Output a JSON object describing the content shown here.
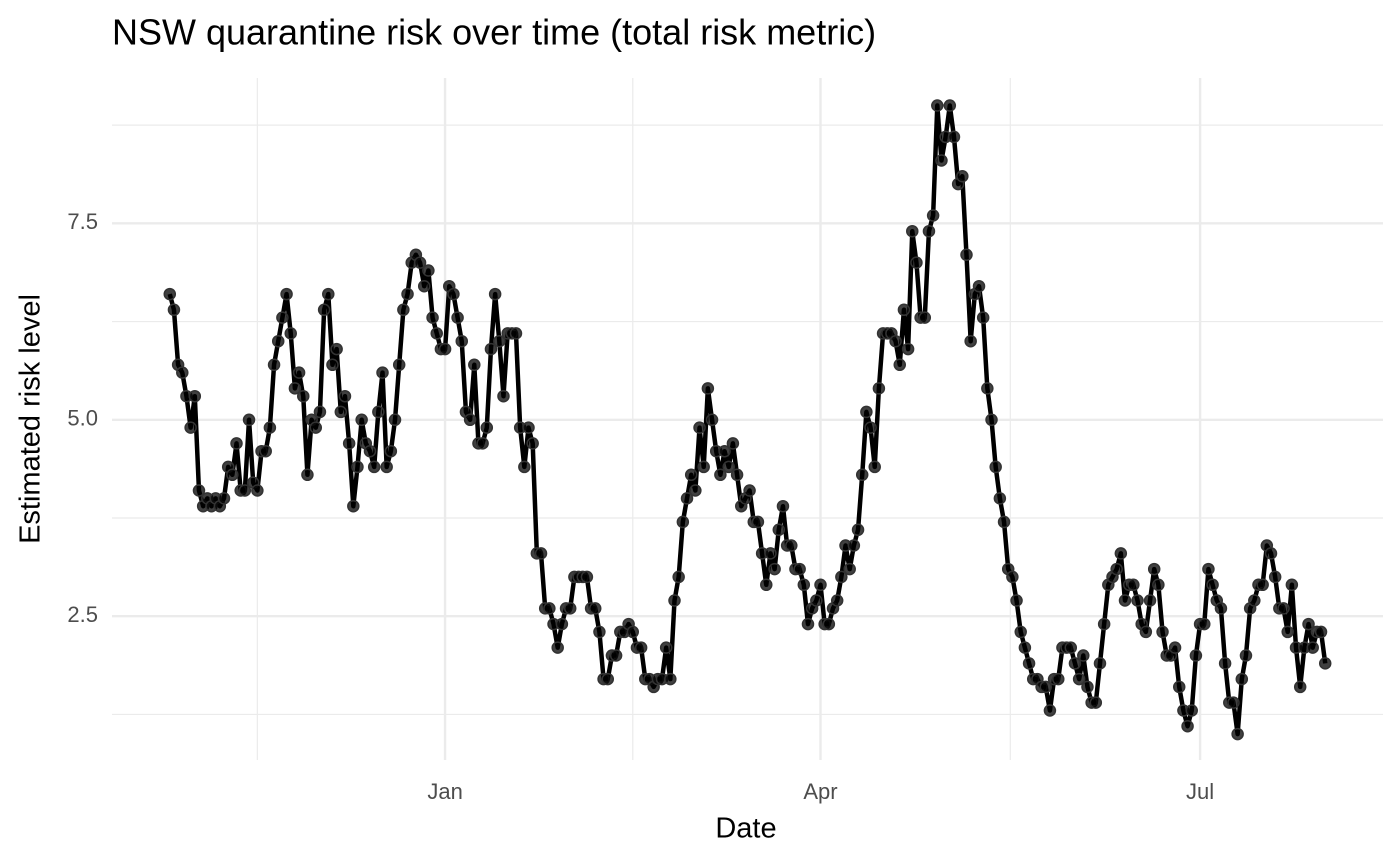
{
  "chart_data": {
    "type": "line",
    "title": "NSW quarantine risk over time (total risk metric)",
    "x_label": "Date",
    "y_label": "Estimated risk level",
    "color": "#000000",
    "grid": true,
    "ylim": [
      0.67,
      9.35
    ],
    "yticks": [
      2.5,
      {
        "value": 5,
        "label": "5.0"
      },
      7.5
    ],
    "categories": [
      null,
      null,
      null,
      null,
      null,
      null,
      null,
      null,
      null,
      null,
      null,
      null,
      null,
      null,
      null,
      null,
      null,
      null,
      null,
      null,
      null,
      null,
      null,
      null,
      null,
      null,
      null,
      null,
      null,
      null,
      null,
      null,
      null,
      null,
      null,
      null,
      null,
      null,
      null,
      null,
      null,
      null,
      null,
      null,
      null,
      null,
      null,
      null,
      null,
      null,
      null,
      null,
      null,
      null,
      null,
      null,
      null,
      null,
      null,
      null,
      null,
      null,
      null,
      null,
      null,
      null,
      "Jan",
      null,
      null,
      null,
      null,
      null,
      null,
      null,
      null,
      null,
      null,
      null,
      null,
      null,
      null,
      null,
      null,
      null,
      null,
      null,
      null,
      null,
      null,
      null,
      null,
      null,
      null,
      null,
      null,
      null,
      null,
      null,
      null,
      null,
      null,
      null,
      null,
      null,
      null,
      null,
      null,
      null,
      null,
      null,
      null,
      null,
      null,
      null,
      null,
      null,
      null,
      null,
      null,
      null,
      null,
      null,
      null,
      null,
      null,
      null,
      null,
      null,
      null,
      null,
      null,
      null,
      null,
      null,
      null,
      null,
      null,
      null,
      null,
      null,
      null,
      null,
      null,
      null,
      null,
      null,
      null,
      null,
      null,
      null,
      null,
      null,
      null,
      null,
      null,
      null,
      "Apr",
      null,
      null,
      null,
      null,
      null,
      null,
      null,
      null,
      null,
      null,
      null,
      null,
      null,
      null,
      null,
      null,
      null,
      null,
      null,
      null,
      null,
      null,
      null,
      null,
      null,
      null,
      null,
      null,
      null,
      null,
      null,
      null,
      null,
      null,
      null,
      null,
      null,
      null,
      null,
      null,
      null,
      null,
      null,
      null,
      null,
      null,
      null,
      null,
      null,
      null,
      null,
      null,
      null,
      null,
      null,
      null,
      null,
      null,
      null,
      null,
      null,
      null,
      null,
      null,
      null,
      null,
      null,
      null,
      null,
      null,
      null,
      null,
      null,
      null,
      null,
      null,
      null,
      null,
      null,
      null,
      null,
      null,
      null,
      null,
      null,
      null,
      null,
      null,
      null,
      null,
      "Jul",
      null,
      null,
      null,
      null,
      null,
      null,
      null,
      null,
      null,
      null,
      null,
      null,
      null,
      null,
      null,
      null,
      null,
      null,
      null,
      null,
      null,
      null,
      null,
      null,
      null,
      null,
      null,
      null,
      null,
      null
    ],
    "values": [
      6.6,
      6.4,
      5.7,
      5.6,
      5.3,
      4.9,
      5.3,
      4.1,
      3.9,
      4.0,
      3.9,
      4.0,
      3.9,
      4.0,
      4.4,
      4.3,
      4.7,
      4.1,
      4.1,
      5.0,
      4.2,
      4.1,
      4.6,
      4.6,
      4.9,
      5.7,
      6.0,
      6.3,
      6.6,
      6.1,
      5.4,
      5.6,
      5.3,
      4.3,
      5.0,
      4.9,
      5.1,
      6.4,
      6.6,
      5.7,
      5.9,
      5.1,
      5.3,
      4.7,
      3.9,
      4.4,
      5.0,
      4.7,
      4.6,
      4.4,
      5.1,
      5.6,
      4.4,
      4.6,
      5.0,
      5.7,
      6.4,
      6.6,
      7.0,
      7.1,
      7.0,
      6.7,
      6.9,
      6.3,
      6.1,
      5.9,
      5.9,
      6.7,
      6.6,
      6.3,
      6.0,
      5.1,
      5.0,
      5.7,
      4.7,
      4.7,
      4.9,
      5.9,
      6.6,
      6.0,
      5.3,
      6.1,
      6.1,
      6.1,
      4.9,
      4.4,
      4.9,
      4.7,
      3.3,
      3.3,
      2.6,
      2.6,
      2.4,
      2.1,
      2.4,
      2.6,
      2.6,
      3.0,
      3.0,
      3.0,
      3.0,
      2.6,
      2.6,
      2.3,
      1.7,
      1.7,
      2.0,
      2.0,
      2.3,
      2.3,
      2.4,
      2.3,
      2.1,
      2.1,
      1.7,
      1.7,
      1.6,
      1.7,
      1.7,
      2.1,
      1.7,
      2.7,
      3.0,
      3.7,
      4.0,
      4.3,
      4.1,
      4.9,
      4.4,
      5.4,
      5.0,
      4.6,
      4.3,
      4.6,
      4.4,
      4.7,
      4.3,
      3.9,
      4.0,
      4.1,
      3.7,
      3.7,
      3.3,
      2.9,
      3.3,
      3.1,
      3.6,
      3.9,
      3.4,
      3.4,
      3.1,
      3.1,
      2.9,
      2.4,
      2.6,
      2.7,
      2.9,
      2.4,
      2.4,
      2.6,
      2.7,
      3.0,
      3.4,
      3.1,
      3.4,
      3.6,
      4.3,
      5.1,
      4.9,
      4.4,
      5.4,
      6.1,
      6.1,
      6.1,
      6.0,
      5.7,
      6.4,
      5.9,
      7.4,
      7.0,
      6.3,
      6.3,
      7.4,
      7.6,
      9.0,
      8.3,
      8.6,
      9.0,
      8.6,
      8.0,
      8.1,
      7.1,
      6.0,
      6.6,
      6.7,
      6.3,
      5.4,
      5.0,
      4.4,
      4.0,
      3.7,
      3.1,
      3.0,
      2.7,
      2.3,
      2.1,
      1.9,
      1.7,
      1.7,
      1.6,
      1.6,
      1.3,
      1.7,
      1.7,
      2.1,
      2.1,
      2.1,
      1.9,
      1.7,
      2.0,
      1.6,
      1.4,
      1.4,
      1.9,
      2.4,
      2.9,
      3.0,
      3.1,
      3.3,
      2.7,
      2.9,
      2.9,
      2.7,
      2.4,
      2.3,
      2.7,
      3.1,
      2.9,
      2.3,
      2.0,
      2.0,
      2.1,
      1.6,
      1.3,
      1.1,
      1.3,
      2.0,
      2.4,
      2.4,
      3.1,
      2.9,
      2.7,
      2.6,
      1.9,
      1.4,
      1.4,
      1.0,
      1.7,
      2.0,
      2.6,
      2.7,
      2.9,
      2.9,
      3.4,
      3.3,
      3.0,
      2.6,
      2.6,
      2.3,
      2.9,
      2.1,
      1.6,
      2.1,
      2.4,
      2.1,
      2.3,
      2.3,
      1.9
    ]
  }
}
